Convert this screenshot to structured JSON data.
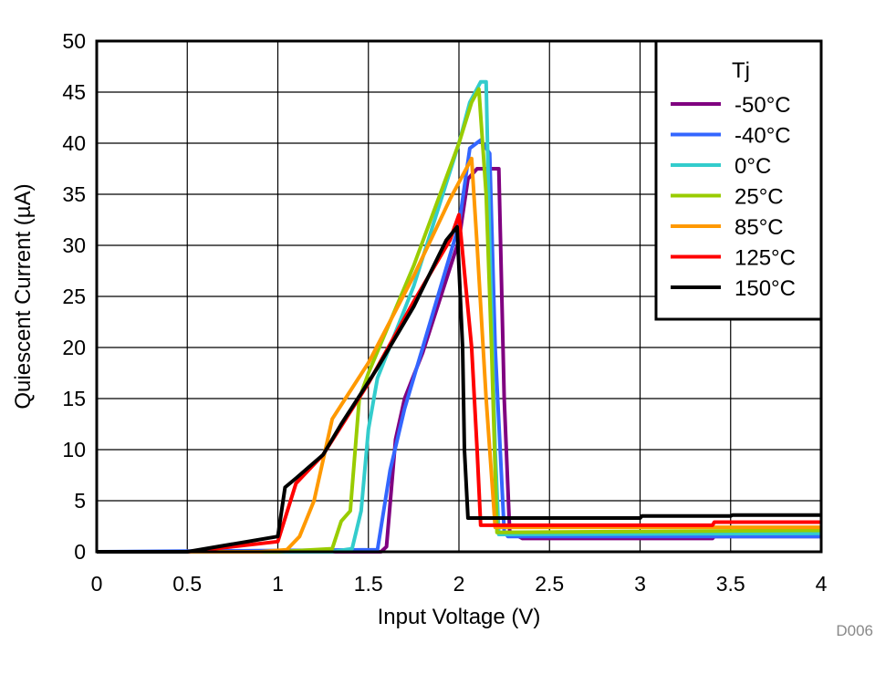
{
  "chart_data": {
    "type": "line",
    "title": "",
    "xlabel": "Input Voltage (V)",
    "ylabel": "Quiescent Current (µA)",
    "xlim": [
      0,
      4
    ],
    "ylim": [
      0,
      50
    ],
    "xticks": [
      "0",
      "0.5",
      "1",
      "1.5",
      "2",
      "2.5",
      "3",
      "3.5",
      "4"
    ],
    "yticks": [
      "0",
      "5",
      "10",
      "15",
      "20",
      "25",
      "30",
      "35",
      "40",
      "45",
      "50"
    ],
    "grid": true,
    "legend": {
      "title": "Tj",
      "placement": "top-right"
    },
    "annotation": "D006",
    "series": [
      {
        "name": "-50°C",
        "color": "#800080",
        "points": [
          [
            0,
            0
          ],
          [
            1.57,
            0
          ],
          [
            1.6,
            0.5
          ],
          [
            1.65,
            11
          ],
          [
            1.7,
            15
          ],
          [
            1.8,
            19.5
          ],
          [
            2.0,
            30.5
          ],
          [
            2.05,
            36.5
          ],
          [
            2.1,
            37.5
          ],
          [
            2.22,
            37.5
          ],
          [
            2.25,
            15
          ],
          [
            2.28,
            2
          ],
          [
            2.35,
            1.3
          ],
          [
            3.4,
            1.3
          ],
          [
            3.41,
            1.5
          ],
          [
            4,
            1.5
          ]
        ]
      },
      {
        "name": "-40°C",
        "color": "#3366ff",
        "points": [
          [
            0,
            0
          ],
          [
            1.55,
            0.2
          ],
          [
            1.62,
            8
          ],
          [
            1.7,
            14
          ],
          [
            1.8,
            20
          ],
          [
            2.0,
            32
          ],
          [
            2.06,
            39.5
          ],
          [
            2.12,
            40.3
          ],
          [
            2.17,
            39
          ],
          [
            2.2,
            20
          ],
          [
            2.25,
            2
          ],
          [
            2.27,
            1.5
          ],
          [
            4,
            1.5
          ]
        ]
      },
      {
        "name": "0°C",
        "color": "#33cccc",
        "points": [
          [
            0,
            0
          ],
          [
            1.3,
            0
          ],
          [
            1.41,
            0.3
          ],
          [
            1.46,
            4
          ],
          [
            1.5,
            12
          ],
          [
            1.55,
            17
          ],
          [
            1.75,
            26
          ],
          [
            2.0,
            40
          ],
          [
            2.06,
            44
          ],
          [
            2.12,
            46
          ],
          [
            2.15,
            46
          ],
          [
            2.17,
            30
          ],
          [
            2.2,
            10
          ],
          [
            2.22,
            1.7
          ],
          [
            4,
            1.8
          ]
        ]
      },
      {
        "name": "25°C",
        "color": "#99cc00",
        "points": [
          [
            0,
            0
          ],
          [
            1.0,
            0
          ],
          [
            1.3,
            0.3
          ],
          [
            1.35,
            3
          ],
          [
            1.4,
            4
          ],
          [
            1.45,
            15
          ],
          [
            1.5,
            17.5
          ],
          [
            1.75,
            28
          ],
          [
            2.0,
            40
          ],
          [
            2.07,
            44
          ],
          [
            2.11,
            45.3
          ],
          [
            2.15,
            35
          ],
          [
            2.18,
            20
          ],
          [
            2.21,
            1.9
          ],
          [
            4,
            2.1
          ]
        ]
      },
      {
        "name": "85°C",
        "color": "#ff9900",
        "points": [
          [
            0,
            0
          ],
          [
            0.9,
            0
          ],
          [
            1.05,
            0.2
          ],
          [
            1.12,
            1.5
          ],
          [
            1.2,
            5
          ],
          [
            1.3,
            13
          ],
          [
            1.5,
            18.5
          ],
          [
            1.75,
            27
          ],
          [
            1.95,
            34.5
          ],
          [
            2.07,
            38.5
          ],
          [
            2.1,
            30
          ],
          [
            2.15,
            15
          ],
          [
            2.2,
            2.4
          ],
          [
            4,
            2.4
          ]
        ]
      },
      {
        "name": "125°C",
        "color": "#ff0000",
        "points": [
          [
            0,
            0
          ],
          [
            0.5,
            0
          ],
          [
            1.0,
            1
          ],
          [
            1.1,
            6.7
          ],
          [
            1.25,
            9.5
          ],
          [
            1.5,
            16.5
          ],
          [
            1.75,
            24.5
          ],
          [
            1.95,
            30.5
          ],
          [
            2.0,
            33
          ],
          [
            2.07,
            20
          ],
          [
            2.1,
            10
          ],
          [
            2.12,
            2.6
          ],
          [
            3.4,
            2.6
          ],
          [
            3.41,
            2.9
          ],
          [
            4,
            2.9
          ]
        ]
      },
      {
        "name": "150°C",
        "color": "#000000",
        "points": [
          [
            0,
            0
          ],
          [
            0.5,
            0
          ],
          [
            1.0,
            1.5
          ],
          [
            1.04,
            6.3
          ],
          [
            1.1,
            7.2
          ],
          [
            1.25,
            9.5
          ],
          [
            1.35,
            12.5
          ],
          [
            1.55,
            18
          ],
          [
            1.75,
            24
          ],
          [
            1.93,
            30.5
          ],
          [
            1.99,
            31.8
          ],
          [
            2.02,
            20
          ],
          [
            2.03,
            10
          ],
          [
            2.05,
            3.3
          ],
          [
            3.0,
            3.3
          ],
          [
            3.01,
            3.5
          ],
          [
            3.5,
            3.5
          ],
          [
            3.51,
            3.6
          ],
          [
            4,
            3.6
          ]
        ]
      }
    ]
  }
}
